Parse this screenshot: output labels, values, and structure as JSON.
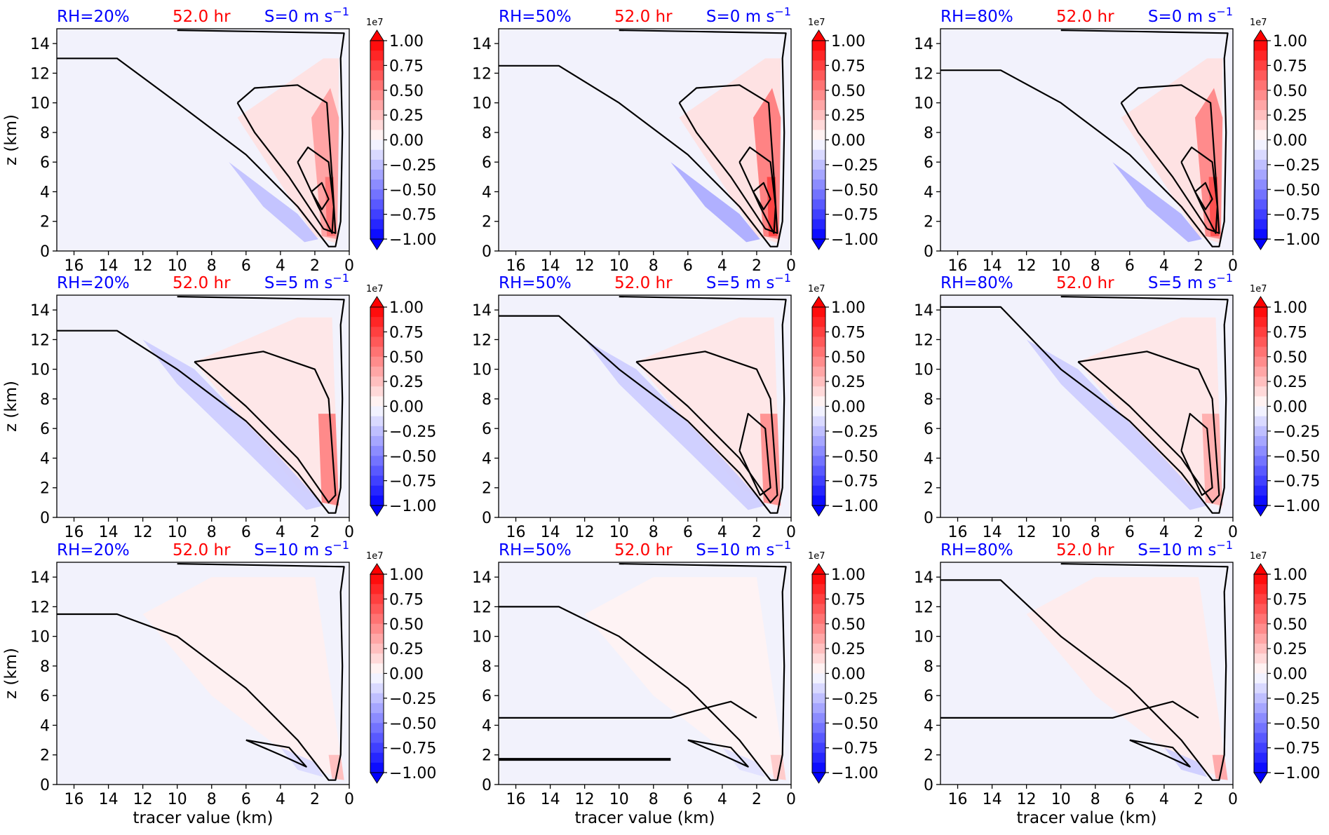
{
  "figure": {
    "rows": [
      {
        "shear_label": "S=0 m s",
        "sup": "−1"
      },
      {
        "shear_label": "S=5 m s",
        "sup": "−1"
      },
      {
        "shear_label": "S=10 m s",
        "sup": "−1"
      }
    ],
    "cols": [
      {
        "rh_label": "RH=20%"
      },
      {
        "rh_label": "RH=50%"
      },
      {
        "rh_label": "RH=80%"
      }
    ],
    "time_label": "52.0 hr",
    "xlabel": "tracer value (km)",
    "ylabel": "z (km)",
    "colors": {
      "rh": "#0000ff",
      "time": "#ff0000",
      "shear": "#0000ff",
      "background": "#f2f2fc",
      "contour": "#000000"
    }
  },
  "chart_data": {
    "type": "heatmap",
    "panel_grid": [
      3,
      3
    ],
    "x_axis": {
      "label": "tracer value (km)",
      "range": [
        17,
        0
      ],
      "ticks": [
        16,
        14,
        12,
        10,
        8,
        6,
        4,
        2,
        0
      ],
      "reversed": true
    },
    "y_axis": {
      "label": "z (km)",
      "range": [
        0,
        15
      ],
      "ticks": [
        0,
        2,
        4,
        6,
        8,
        10,
        12,
        14
      ]
    },
    "colorbar": {
      "multiplier": "1e7",
      "range": [
        -1.0,
        1.0
      ],
      "extend": "both",
      "cmap": "bwr",
      "tick_labels": [
        "1.00",
        "0.75",
        "0.50",
        "0.25",
        "0.00",
        "−0.25",
        "−0.50",
        "−0.75",
        "−1.00"
      ],
      "levels": 20
    },
    "panels": [
      {
        "rh": "RH=20%",
        "time": "52.0 hr",
        "shear": "S=0 m s",
        "shear_sup": "−1",
        "row": 0,
        "col": 0,
        "peak": 0.55,
        "has_ylabel": true,
        "has_xlabel": false
      },
      {
        "rh": "RH=50%",
        "time": "52.0 hr",
        "shear": "S=0 m s",
        "shear_sup": "−1",
        "row": 0,
        "col": 1,
        "peak": 0.75,
        "has_ylabel": false,
        "has_xlabel": false
      },
      {
        "rh": "RH=80%",
        "time": "52.0 hr",
        "shear": "S=0 m s",
        "shear_sup": "−1",
        "row": 0,
        "col": 2,
        "peak": 0.7,
        "has_ylabel": false,
        "has_xlabel": false
      },
      {
        "rh": "RH=20%",
        "time": "52.0 hr",
        "shear": "S=5 m s",
        "shear_sup": "−1",
        "row": 1,
        "col": 0,
        "peak": 0.6,
        "has_ylabel": true,
        "has_xlabel": false
      },
      {
        "rh": "RH=50%",
        "time": "52.0 hr",
        "shear": "S=5 m s",
        "shear_sup": "−1",
        "row": 1,
        "col": 1,
        "peak": 0.55,
        "has_ylabel": false,
        "has_xlabel": false
      },
      {
        "rh": "RH=80%",
        "time": "52.0 hr",
        "shear": "S=5 m s",
        "shear_sup": "−1",
        "row": 1,
        "col": 2,
        "peak": 0.4,
        "has_ylabel": false,
        "has_xlabel": false
      },
      {
        "rh": "RH=20%",
        "time": "52.0 hr",
        "shear": "S=10 m s",
        "shear_sup": "−1",
        "row": 2,
        "col": 0,
        "peak": 0.15,
        "has_ylabel": true,
        "has_xlabel": true
      },
      {
        "rh": "RH=50%",
        "time": "52.0 hr",
        "shear": "S=10 m s",
        "shear_sup": "−1",
        "row": 2,
        "col": 1,
        "peak": 0.12,
        "has_ylabel": false,
        "has_xlabel": true
      },
      {
        "rh": "RH=80%",
        "time": "52.0 hr",
        "shear": "S=10 m s",
        "shear_sup": "−1",
        "row": 2,
        "col": 2,
        "peak": 0.2,
        "has_ylabel": false,
        "has_xlabel": true
      }
    ]
  }
}
